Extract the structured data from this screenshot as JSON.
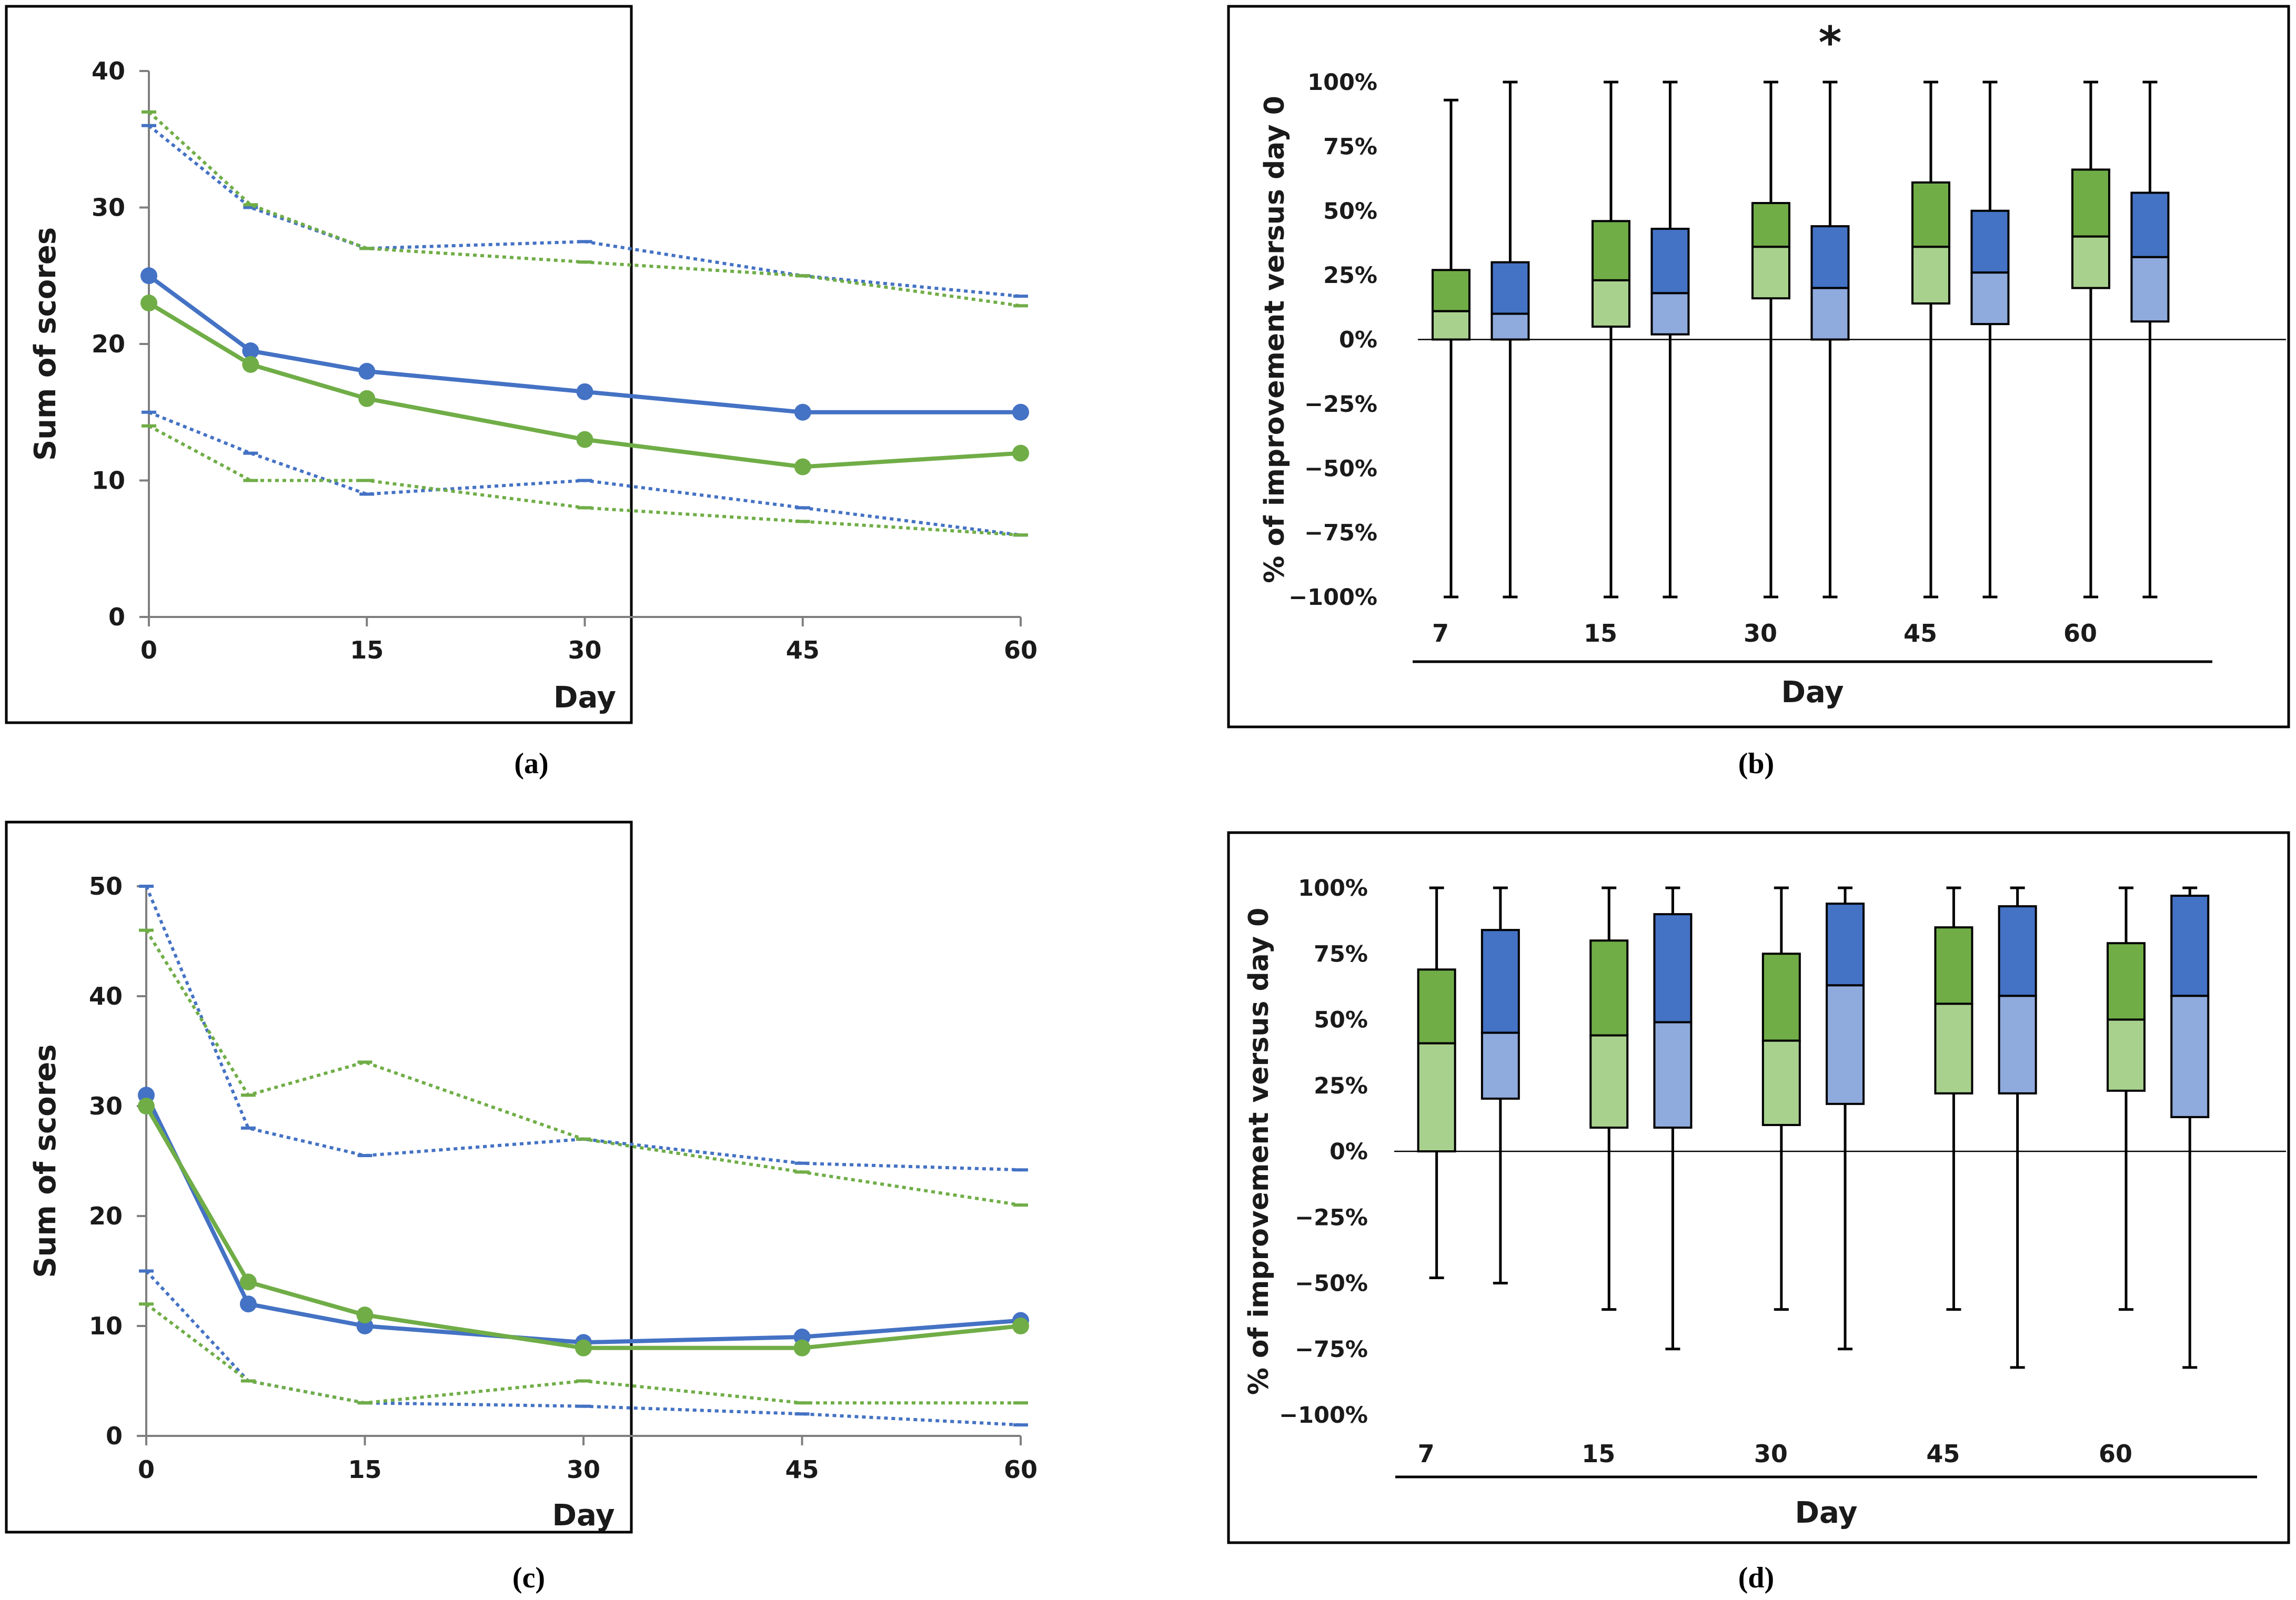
{
  "colors": {
    "green": "#70ad47",
    "blue": "#4472c4",
    "green_light": "#a9d18e",
    "blue_light": "#8faadc",
    "axis": "#7f7f7f",
    "whisker": "#000000"
  },
  "chart_data": [
    {
      "id": "a",
      "type": "line",
      "caption": "(a)",
      "xlabel": "Day",
      "ylabel": "Sum of scores",
      "x": [
        0,
        7,
        15,
        30,
        45,
        60
      ],
      "xticks": [
        0,
        15,
        30,
        45,
        60
      ],
      "xtick_labels": [
        "0",
        "15",
        "30",
        "45",
        "60"
      ],
      "ylim": [
        0,
        40
      ],
      "yticks": [
        0,
        10,
        20,
        30,
        40
      ],
      "ytick_labels": [
        "0",
        "10",
        "20",
        "30",
        "40"
      ],
      "series": [
        {
          "name": "blue median",
          "color": "blue",
          "style": "solid",
          "values": [
            25,
            19.5,
            18,
            16.5,
            15,
            15
          ]
        },
        {
          "name": "green median",
          "color": "green",
          "style": "solid",
          "values": [
            23,
            18.5,
            16,
            13,
            11,
            12
          ]
        },
        {
          "name": "blue upper",
          "color": "blue",
          "style": "dotted",
          "values": [
            36,
            30,
            27,
            27.5,
            25,
            23.5
          ]
        },
        {
          "name": "green upper",
          "color": "green",
          "style": "dotted",
          "values": [
            37,
            30.2,
            27,
            26,
            25,
            22.8
          ]
        },
        {
          "name": "blue lower",
          "color": "blue",
          "style": "dotted",
          "values": [
            15,
            12,
            9,
            10,
            8,
            6
          ]
        },
        {
          "name": "green lower",
          "color": "green",
          "style": "dotted",
          "values": [
            14,
            10,
            10,
            8,
            7,
            6
          ]
        }
      ]
    },
    {
      "id": "b",
      "type": "box",
      "caption": "(b)",
      "xlabel": "Day",
      "ylabel": "% of improvement versus day 0",
      "ylim": [
        -100,
        100
      ],
      "yticks": [
        -100,
        -75,
        -50,
        -25,
        0,
        25,
        50,
        75,
        100
      ],
      "ytick_labels": [
        "−100%",
        "−75%",
        "−50%",
        "−25%",
        "0%",
        "25%",
        "50%",
        "75%",
        "100%"
      ],
      "categories": [
        "7",
        "15",
        "30",
        "45",
        "60"
      ],
      "annotation": "*",
      "annotation_category": "30",
      "groups": [
        {
          "day": "7",
          "green": {
            "min": -100,
            "q1": 0,
            "median": 11,
            "q3": 27,
            "max": 93
          },
          "blue": {
            "min": -100,
            "q1": 0,
            "median": 10,
            "q3": 30,
            "max": 100
          }
        },
        {
          "day": "15",
          "green": {
            "min": -100,
            "q1": 5,
            "median": 23,
            "q3": 46,
            "max": 100
          },
          "blue": {
            "min": -100,
            "q1": 2,
            "median": 18,
            "q3": 43,
            "max": 100
          }
        },
        {
          "day": "30",
          "green": {
            "min": -100,
            "q1": 16,
            "median": 36,
            "q3": 53,
            "max": 100
          },
          "blue": {
            "min": -100,
            "q1": 0,
            "median": 20,
            "q3": 44,
            "max": 100
          }
        },
        {
          "day": "45",
          "green": {
            "min": -100,
            "q1": 14,
            "median": 36,
            "q3": 61,
            "max": 100
          },
          "blue": {
            "min": -100,
            "q1": 6,
            "median": 26,
            "q3": 50,
            "max": 100
          }
        },
        {
          "day": "60",
          "green": {
            "min": -100,
            "q1": 20,
            "median": 40,
            "q3": 66,
            "max": 100
          },
          "blue": {
            "min": -100,
            "q1": 7,
            "median": 32,
            "q3": 57,
            "max": 100
          }
        }
      ]
    },
    {
      "id": "c",
      "type": "line",
      "caption": "(c)",
      "xlabel": "Day",
      "ylabel": "Sum of scores",
      "x": [
        0,
        7,
        15,
        30,
        45,
        60
      ],
      "xticks": [
        0,
        15,
        30,
        45,
        60
      ],
      "xtick_labels": [
        "0",
        "15",
        "30",
        "45",
        "60"
      ],
      "ylim": [
        0,
        50
      ],
      "yticks": [
        0,
        10,
        20,
        30,
        40,
        50
      ],
      "ytick_labels": [
        "0",
        "10",
        "20",
        "30",
        "40",
        "50"
      ],
      "series": [
        {
          "name": "blue median",
          "color": "blue",
          "style": "solid",
          "values": [
            31,
            12,
            10,
            8.5,
            9,
            10.5
          ]
        },
        {
          "name": "green median",
          "color": "green",
          "style": "solid",
          "values": [
            30,
            14,
            11,
            8,
            8,
            10
          ]
        },
        {
          "name": "blue upper",
          "color": "blue",
          "style": "dotted",
          "values": [
            50,
            28,
            25.5,
            27,
            24.8,
            24.2
          ]
        },
        {
          "name": "green upper",
          "color": "green",
          "style": "dotted",
          "values": [
            46,
            31,
            34,
            27,
            24,
            21
          ]
        },
        {
          "name": "blue lower",
          "color": "blue",
          "style": "dotted",
          "values": [
            15,
            5,
            3,
            2.7,
            2,
            1
          ]
        },
        {
          "name": "green lower",
          "color": "green",
          "style": "dotted",
          "values": [
            12,
            5,
            3,
            5,
            3,
            3
          ]
        }
      ]
    },
    {
      "id": "d",
      "type": "box",
      "caption": "(d)",
      "xlabel": "Day",
      "ylabel": "% of improvement versus day 0",
      "ylim": [
        -100,
        100
      ],
      "yticks": [
        -100,
        -75,
        -50,
        -25,
        0,
        25,
        50,
        75,
        100
      ],
      "ytick_labels": [
        "−100%",
        "−75%",
        "−50%",
        "−25%",
        "0%",
        "25%",
        "50%",
        "75%",
        "100%"
      ],
      "categories": [
        "7",
        "15",
        "30",
        "45",
        "60"
      ],
      "groups": [
        {
          "day": "7",
          "green": {
            "min": -48,
            "q1": 0,
            "median": 41,
            "q3": 69,
            "max": 100
          },
          "blue": {
            "min": -50,
            "q1": 20,
            "median": 45,
            "q3": 84,
            "max": 100
          }
        },
        {
          "day": "15",
          "green": {
            "min": -60,
            "q1": 9,
            "median": 44,
            "q3": 80,
            "max": 100
          },
          "blue": {
            "min": -75,
            "q1": 9,
            "median": 49,
            "q3": 90,
            "max": 100
          }
        },
        {
          "day": "30",
          "green": {
            "min": -60,
            "q1": 10,
            "median": 42,
            "q3": 75,
            "max": 100
          },
          "blue": {
            "min": -75,
            "q1": 18,
            "median": 63,
            "q3": 94,
            "max": 100
          }
        },
        {
          "day": "45",
          "green": {
            "min": -60,
            "q1": 22,
            "median": 56,
            "q3": 85,
            "max": 100
          },
          "blue": {
            "min": -82,
            "q1": 22,
            "median": 59,
            "q3": 93,
            "max": 100
          }
        },
        {
          "day": "60",
          "green": {
            "min": -60,
            "q1": 23,
            "median": 50,
            "q3": 79,
            "max": 100
          },
          "blue": {
            "min": -82,
            "q1": 13,
            "median": 59,
            "q3": 97,
            "max": 100
          }
        }
      ]
    }
  ]
}
